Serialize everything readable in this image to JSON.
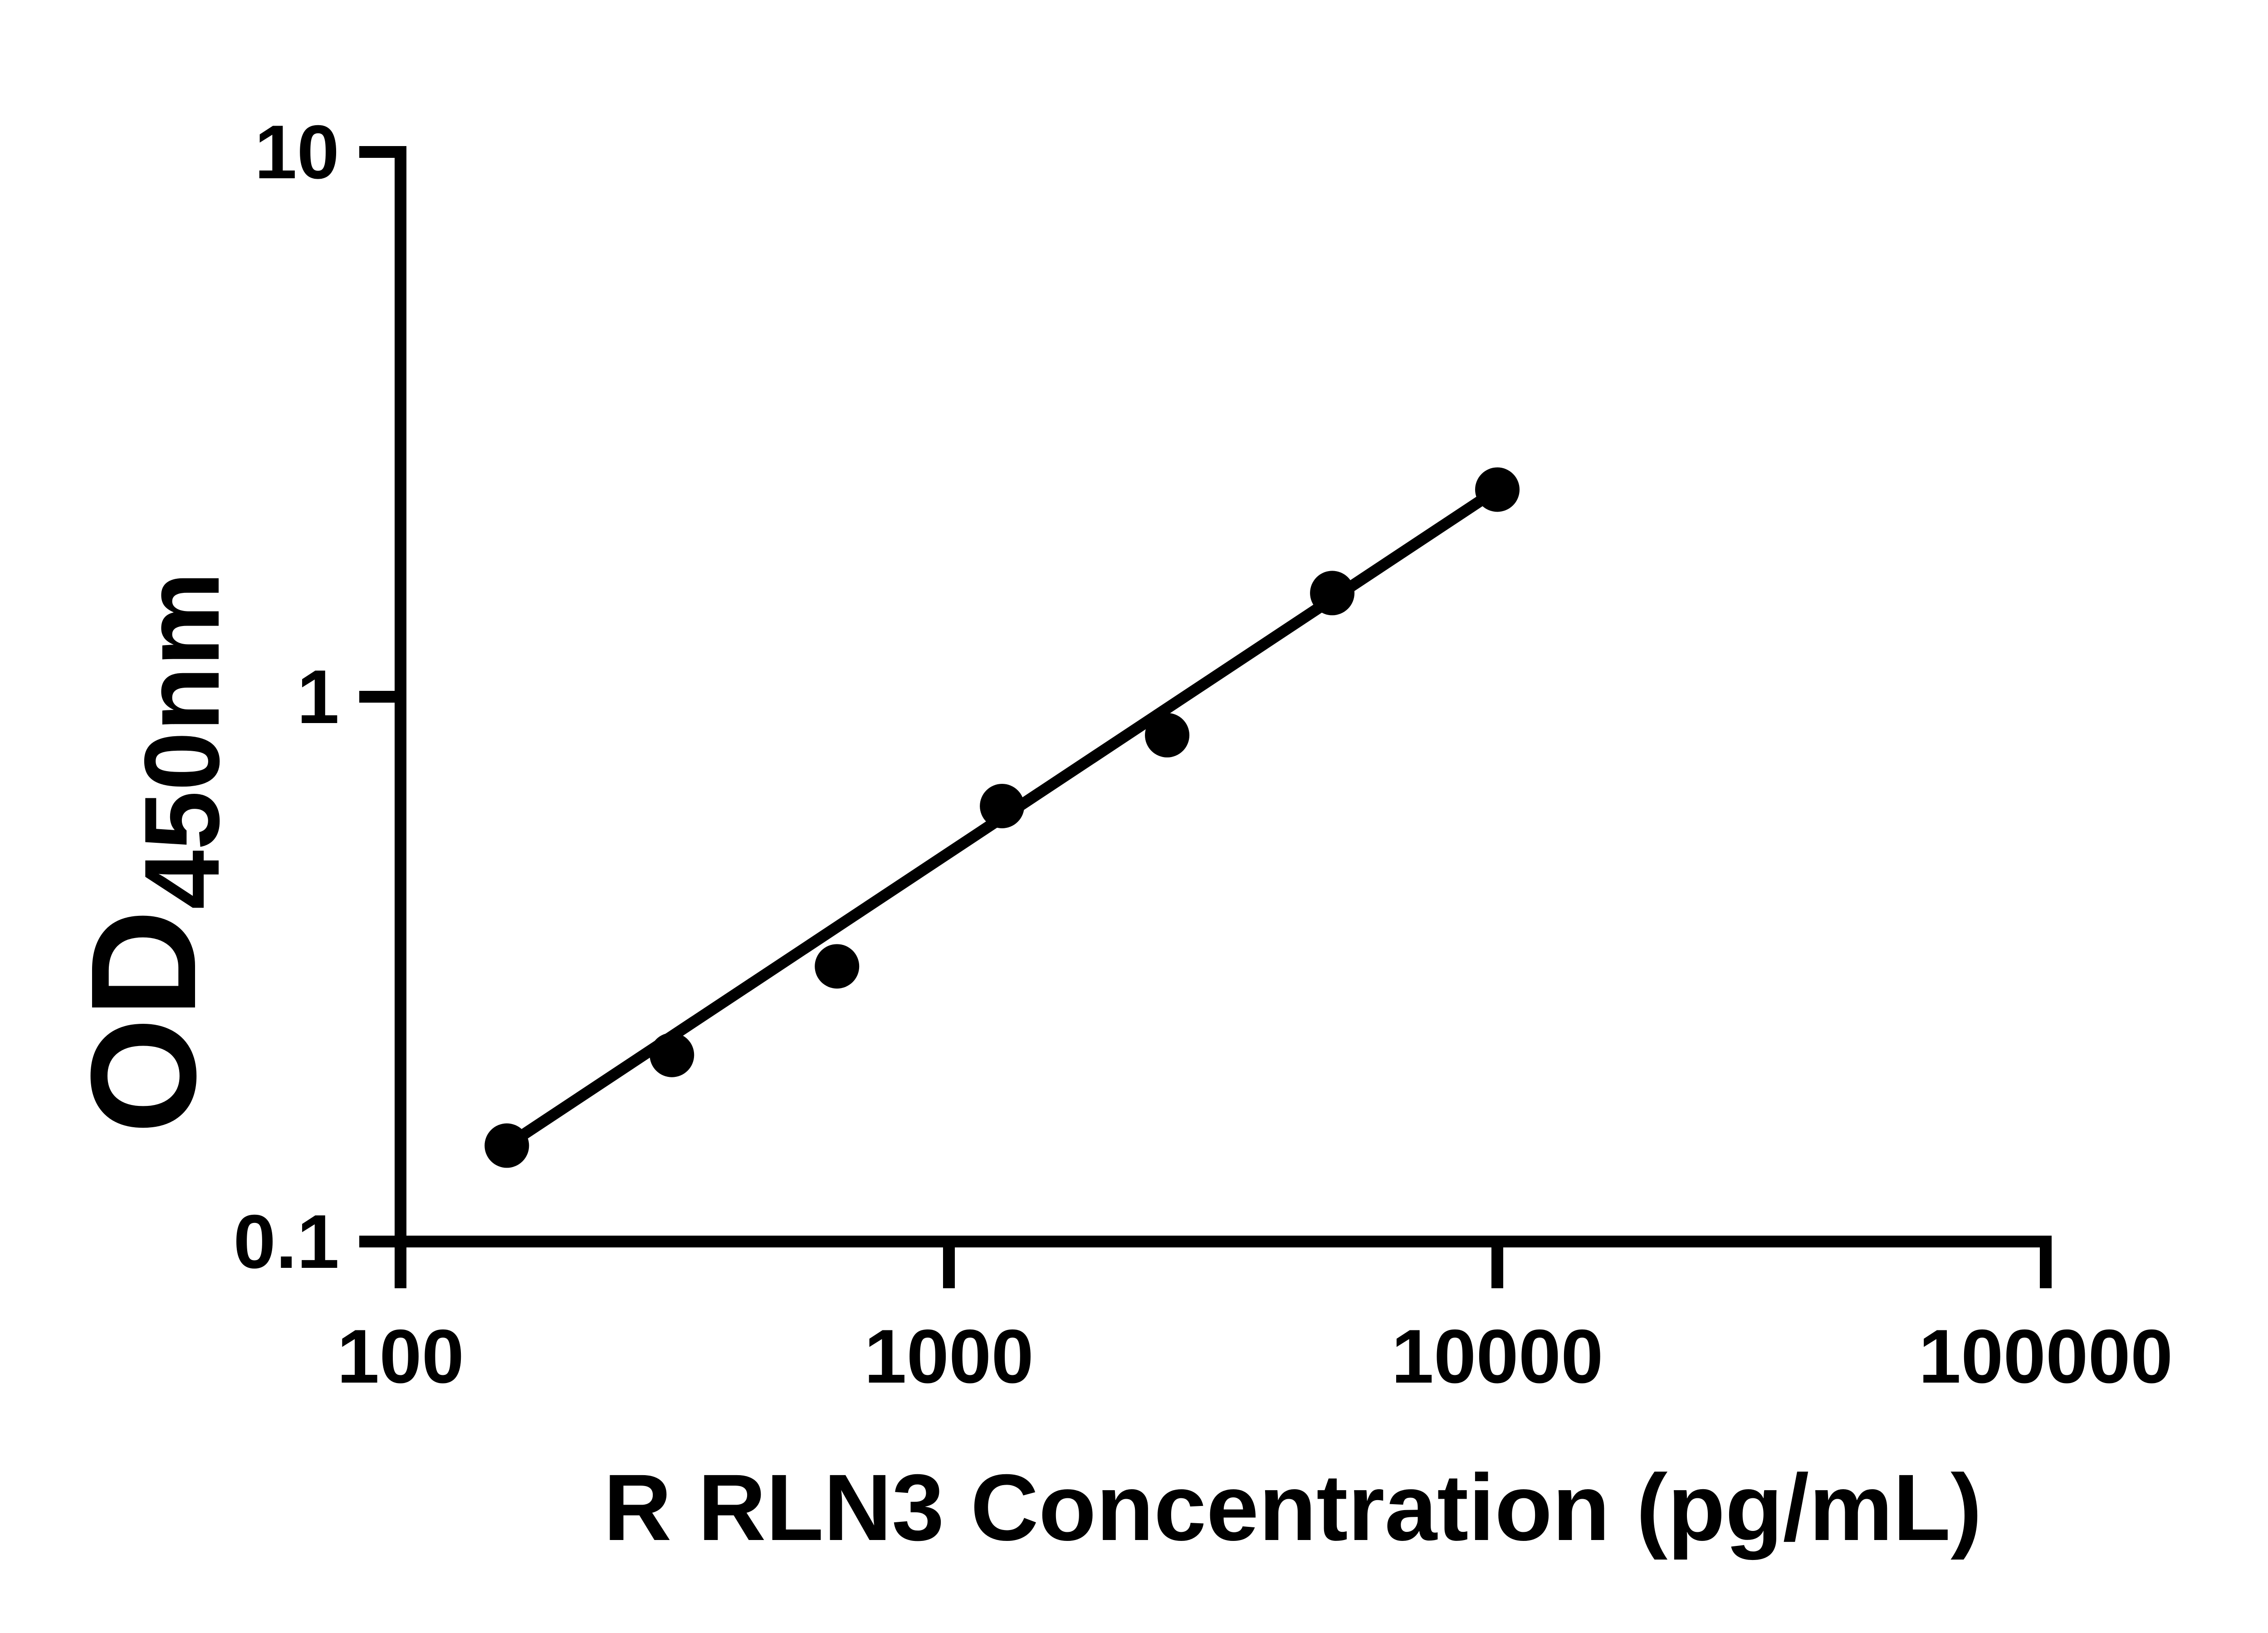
{
  "chart_data": {
    "type": "scatter",
    "title": "",
    "xlabel": "R RLN3 Concentration (pg/mL)",
    "ylabel_main": "OD",
    "ylabel_sub": "450nm",
    "x_scale": "log",
    "y_scale": "log",
    "xlim": [
      100,
      100000
    ],
    "ylim": [
      0.1,
      10
    ],
    "grid": false,
    "legend": false,
    "background_color": "#ffffff",
    "marker_color": "#000000",
    "line_color": "#000000",
    "axis_color": "#000000",
    "x_ticks": [
      {
        "value": 100,
        "label": "100"
      },
      {
        "value": 1000,
        "label": "1000"
      },
      {
        "value": 10000,
        "label": "10000"
      },
      {
        "value": 100000,
        "label": "100000"
      }
    ],
    "y_ticks": [
      {
        "value": 0.1,
        "label": "0.1"
      },
      {
        "value": 1,
        "label": "1"
      },
      {
        "value": 10,
        "label": "10"
      }
    ],
    "points": [
      {
        "x": 156.25,
        "y": 0.15
      },
      {
        "x": 312.5,
        "y": 0.22
      },
      {
        "x": 625,
        "y": 0.32
      },
      {
        "x": 1250,
        "y": 0.63
      },
      {
        "x": 2500,
        "y": 0.85
      },
      {
        "x": 5000,
        "y": 1.55
      },
      {
        "x": 10000,
        "y": 2.4
      }
    ],
    "trend_line": {
      "x1": 156.25,
      "y1": 0.15,
      "x2": 10000,
      "y2": 2.4
    }
  }
}
